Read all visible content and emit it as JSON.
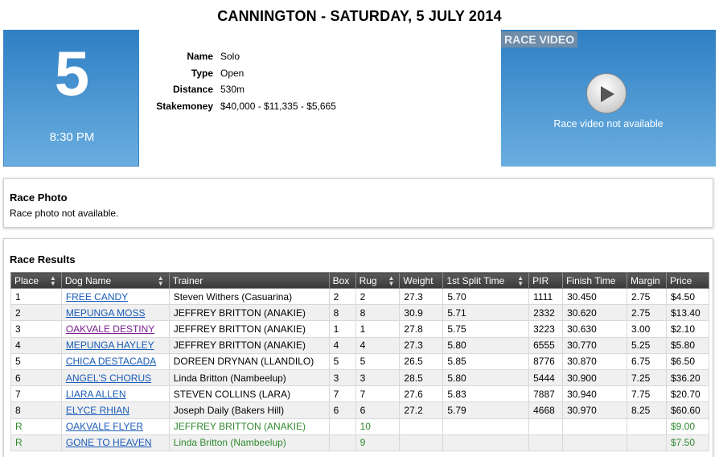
{
  "page_title": "CANNINGTON - SATURDAY, 5 JULY 2014",
  "race": {
    "number": "5",
    "time": "8:30 PM",
    "info": [
      {
        "label": "Name",
        "value": "Solo"
      },
      {
        "label": "Type",
        "value": "Open"
      },
      {
        "label": "Distance",
        "value": "530m"
      },
      {
        "label": "Stakemoney",
        "value": "$40,000 - $11,335 - $5,665"
      }
    ]
  },
  "video": {
    "tag": "RACE VIDEO",
    "message": "Race video not available",
    "play_icon": "play-icon"
  },
  "photo": {
    "title": "Race Photo",
    "message": "Race photo not available."
  },
  "results": {
    "title": "Race Results",
    "columns": [
      "Place",
      "Dog Name",
      "Trainer",
      "Box",
      "Rug",
      "Weight",
      "1st Split Time",
      "PIR",
      "Finish Time",
      "Margin",
      "Price"
    ],
    "rows": [
      {
        "place": "1",
        "dog": "FREE CANDY",
        "trainer": "Steven Withers (Casuarina)",
        "box": "2",
        "rug": "2",
        "weight": "27.3",
        "split": "5.70",
        "pir": "1111",
        "finish": "30.450",
        "margin": "2.75",
        "price": "$4.50"
      },
      {
        "place": "2",
        "dog": "MEPUNGA MOSS",
        "trainer": "JEFFREY BRITTON (ANAKIE)",
        "box": "8",
        "rug": "8",
        "weight": "30.9",
        "split": "5.71",
        "pir": "2332",
        "finish": "30.620",
        "margin": "2.75",
        "price": "$13.40"
      },
      {
        "place": "3",
        "dog": "OAKVALE DESTINY",
        "trainer": "JEFFREY BRITTON (ANAKIE)",
        "box": "1",
        "rug": "1",
        "weight": "27.8",
        "split": "5.75",
        "pir": "3223",
        "finish": "30.630",
        "margin": "3.00",
        "price": "$2.10"
      },
      {
        "place": "4",
        "dog": "MEPUNGA HAYLEY",
        "trainer": "JEFFREY BRITTON (ANAKIE)",
        "box": "4",
        "rug": "4",
        "weight": "27.3",
        "split": "5.80",
        "pir": "6555",
        "finish": "30.770",
        "margin": "5.25",
        "price": "$5.80"
      },
      {
        "place": "5",
        "dog": "CHICA DESTACADA",
        "trainer": "DOREEN DRYNAN (LLANDILO)",
        "box": "5",
        "rug": "5",
        "weight": "26.5",
        "split": "5.85",
        "pir": "8776",
        "finish": "30.870",
        "margin": "6.75",
        "price": "$6.50"
      },
      {
        "place": "6",
        "dog": "ANGEL'S CHORUS",
        "trainer": "Linda Britton (Nambeelup)",
        "box": "3",
        "rug": "3",
        "weight": "28.5",
        "split": "5.80",
        "pir": "5444",
        "finish": "30.900",
        "margin": "7.25",
        "price": "$36.20"
      },
      {
        "place": "7",
        "dog": "LIARA ALLEN",
        "trainer": "STEVEN COLLINS (LARA)",
        "box": "7",
        "rug": "7",
        "weight": "27.6",
        "split": "5.83",
        "pir": "7887",
        "finish": "30.940",
        "margin": "7.75",
        "price": "$20.70"
      },
      {
        "place": "8",
        "dog": "ELYCE RHIAN",
        "trainer": "Joseph Daily (Bakers Hill)",
        "box": "6",
        "rug": "6",
        "weight": "27.2",
        "split": "5.79",
        "pir": "4668",
        "finish": "30.970",
        "margin": "8.25",
        "price": "$60.60"
      },
      {
        "place": "R",
        "dog": "OAKVALE FLYER",
        "trainer": "JEFFREY BRITTON (ANAKIE)",
        "box": "",
        "rug": "10",
        "weight": "",
        "split": "",
        "pir": "",
        "finish": "",
        "margin": "",
        "price": "$9.00"
      },
      {
        "place": "R",
        "dog": "GONE TO HEAVEN",
        "trainer": "Linda Britton (Nambeelup)",
        "box": "",
        "rug": "9",
        "weight": "",
        "split": "",
        "pir": "",
        "finish": "",
        "margin": "",
        "price": "$7.50"
      }
    ],
    "sort_icon": "sort-arrows-icon",
    "colors": {
      "scratched_text": "#2f8a2f",
      "link": "#1a5bb8",
      "visited_link": "#7a1f8f",
      "header_bg": "#444444"
    }
  },
  "colors": {
    "panel_blue": "#2f7fc4"
  }
}
